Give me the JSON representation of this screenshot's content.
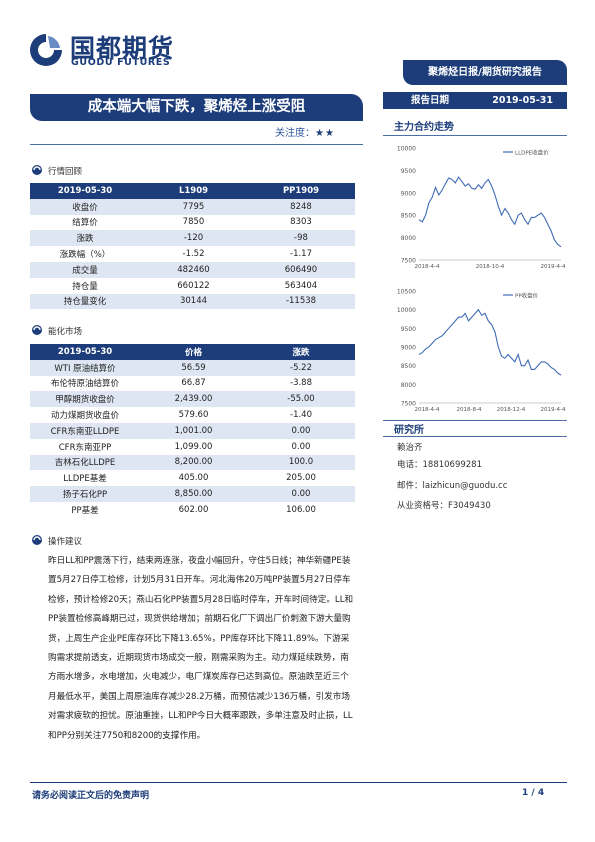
{
  "header": {
    "logo_cn": "国都期货",
    "logo_en": "GUODU FUTURES",
    "report_type": "聚烯烃日报/期货研究报告",
    "date_label": "报告日期",
    "date_value": "2019-05-31"
  },
  "title": "成本端大幅下跌，聚烯烃上涨受阻",
  "attention": {
    "label": "关注度：",
    "stars": "★★"
  },
  "sections": {
    "market_review": "行情回顾",
    "chem_market": "能化市场",
    "advice": "操作建议",
    "main_trend": "主力合约走势",
    "research": "研究所"
  },
  "table1": {
    "header": [
      "2019-05-30",
      "L1909",
      "PP1909"
    ],
    "rows": [
      [
        "收盘价",
        "7795",
        "8248"
      ],
      [
        "结算价",
        "7850",
        "8303"
      ],
      [
        "涨跌",
        "-120",
        "-98"
      ],
      [
        "涨跌幅（%）",
        "-1.52",
        "-1.17"
      ],
      [
        "成交量",
        "482460",
        "606490"
      ],
      [
        "持仓量",
        "660122",
        "563404"
      ],
      [
        "持仓量变化",
        "30144",
        "-11538"
      ]
    ]
  },
  "table2": {
    "header": [
      "2019-05-30",
      "价格",
      "涨跌"
    ],
    "rows": [
      [
        "WTI 原油结算价",
        "56.59",
        "-5.22"
      ],
      [
        "布伦特原油结算价",
        "66.87",
        "-3.88"
      ],
      [
        "甲醇期货收盘价",
        "2,439.00",
        "-55.00"
      ],
      [
        "动力煤期货收盘价",
        "579.60",
        "-1.40"
      ],
      [
        "CFR东南亚LLDPE",
        "1,001.00",
        "0.00"
      ],
      [
        "CFR东南亚PP",
        "1,099.00",
        "0.00"
      ],
      [
        "吉林石化LLDPE",
        "8,200.00",
        "100.0"
      ],
      [
        "LLDPE基差",
        "405.00",
        "205.00"
      ],
      [
        "扬子石化PP",
        "8,850.00",
        "0.00"
      ],
      [
        "PP基差",
        "602.00",
        "106.00"
      ]
    ]
  },
  "advice_text": "昨日LL和PP震荡下行，结束两连涨，夜盘小幅回升，守住5日线；神华新疆PE装置5月27日停工检修，计划5月31日开车。河北海伟20万吨PP装置5月27日停车检修，预计检修20天；燕山石化PP装置5月28日临时停车，开车时间待定。LL和PP装置检修高峰期已过，现货供给增加；前期石化厂下调出厂价刺激下游大量购货，上周生产企业PE库存环比下降13.65%，PP库存环比下降11.89%。下游采购需求提前透支，近期现货市场成交一般，刚需采购为主。动力煤延续跌势，南方雨水增多，水电增加，火电减少，电厂煤炭库存已达到高位。原油跌至近三个月最低水平，美国上周原油库存减少28.2万桶，而预估减少136万桶，引发市场对需求疲软的担忧。原油重挫，LL和PP今日大概率跟跌，多单注意及时止损，LL和PP分别关注7750和8200的支撑作用。",
  "research": {
    "name": "赖治齐",
    "phone": "电话：18810699281",
    "email": "邮件：laizhicun@guodu.cc",
    "cert": "从业资格号：F3049430"
  },
  "footer": {
    "disclaimer": "请务必阅读正文后的免责声明",
    "page": "1 / 4"
  },
  "chart_data": [
    {
      "type": "line",
      "series": [
        {
          "name": "LLDPE收盘价",
          "values": [
            8400,
            8350,
            8500,
            8780,
            8900,
            9120,
            8950,
            9060,
            9200,
            9330,
            9300,
            9220,
            9350,
            9250,
            9150,
            9200,
            9100,
            9080,
            9180,
            9100,
            9220,
            9300,
            9150,
            8950,
            8700,
            8500,
            8650,
            8550,
            8400,
            8300,
            8500,
            8550,
            8400,
            8300,
            8450,
            8450,
            8500,
            8550,
            8450,
            8300,
            8150,
            7950,
            7850,
            7795
          ]
        }
      ],
      "x_ticks": [
        "2018-4-4",
        "2018-10-4",
        "2019-4-4"
      ],
      "y_ticks": [
        7500,
        8000,
        8500,
        9000,
        9500,
        10000
      ],
      "ylim": [
        7500,
        10000
      ]
    },
    {
      "type": "line",
      "series": [
        {
          "name": "PP收盘价",
          "values": [
            8800,
            8850,
            8950,
            9000,
            9100,
            9200,
            9250,
            9300,
            9400,
            9500,
            9600,
            9700,
            9800,
            9800,
            9900,
            9700,
            9800,
            9900,
            10000,
            9850,
            9900,
            9700,
            9600,
            9400,
            9000,
            8750,
            8700,
            8800,
            8700,
            8600,
            8800,
            8500,
            8500,
            8650,
            8400,
            8400,
            8500,
            8600,
            8600,
            8550,
            8450,
            8400,
            8300,
            8248
          ]
        }
      ],
      "x_ticks": [
        "2018-4-4",
        "2018-8-4",
        "2018-12-4",
        "2019-4-4"
      ],
      "y_ticks": [
        7500,
        8000,
        8500,
        9000,
        9500,
        10000,
        10500
      ],
      "ylim": [
        7500,
        10500
      ]
    }
  ]
}
